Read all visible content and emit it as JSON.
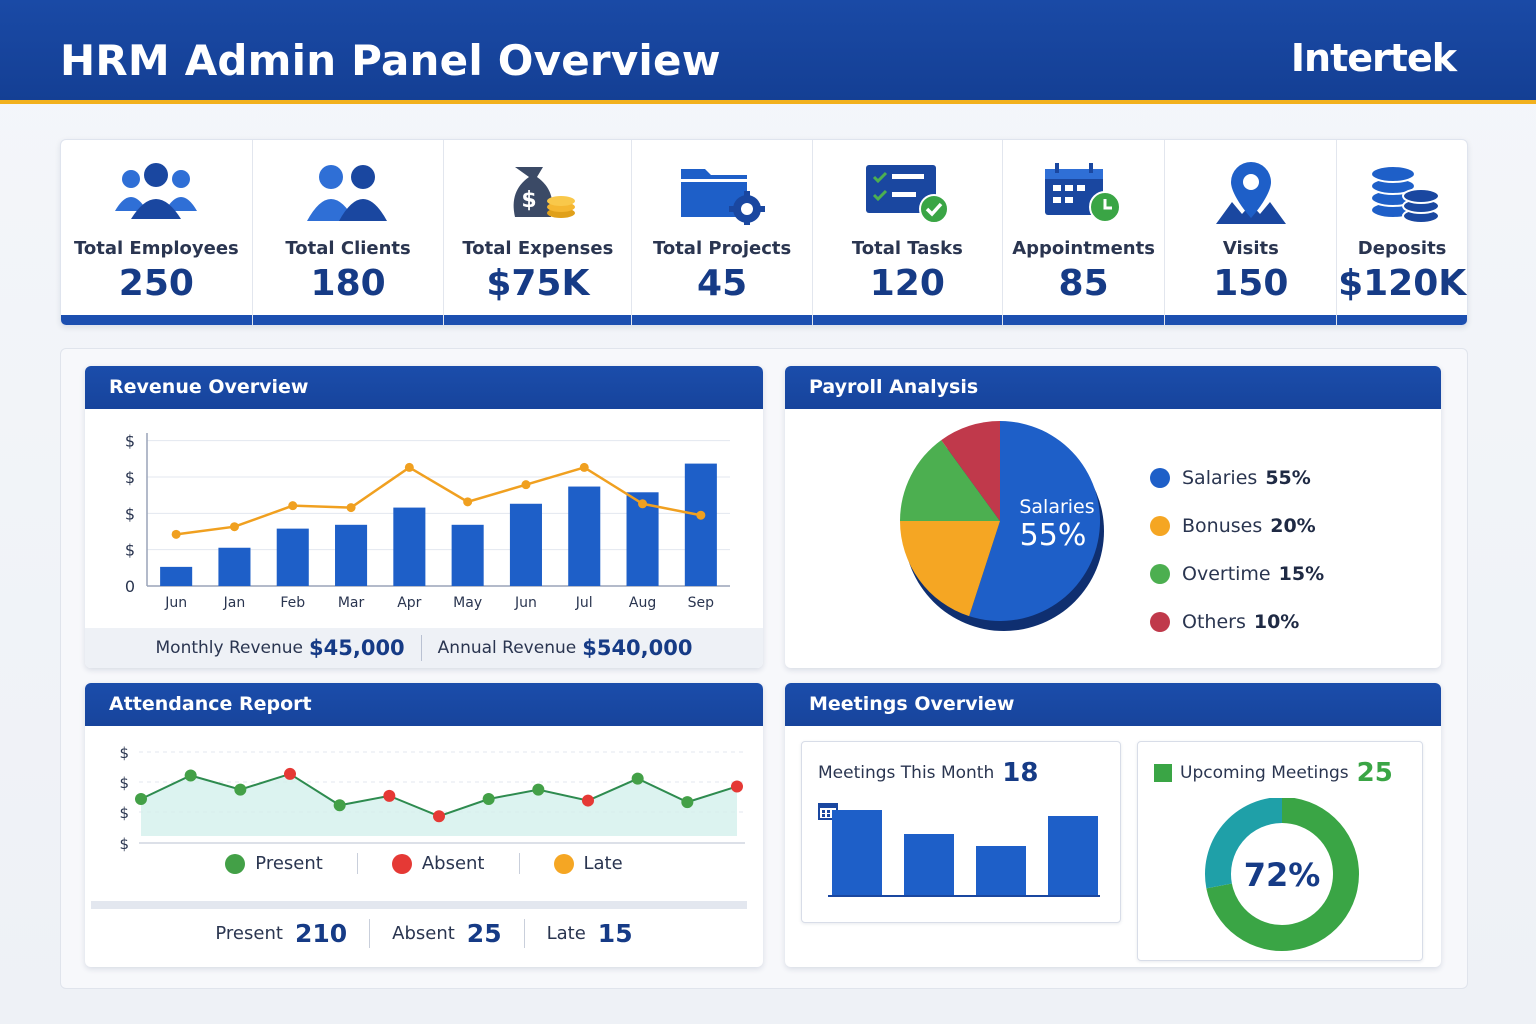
{
  "header": {
    "title": "HRM Admin Panel Overview",
    "brand": "Intertek"
  },
  "kpis": [
    {
      "label": "Total Employees",
      "value": "250",
      "icon": "users-group-icon"
    },
    {
      "label": "Total Clients",
      "value": "180",
      "icon": "clients-icon"
    },
    {
      "label": "Total Expenses",
      "value": "$75K",
      "icon": "money-bag-icon"
    },
    {
      "label": "Total Projects",
      "value": "45",
      "icon": "folder-gear-icon"
    },
    {
      "label": "Total Tasks",
      "value": "120",
      "icon": "task-checklist-icon"
    },
    {
      "label": "Appointments",
      "value": "85",
      "icon": "calendar-clock-icon"
    },
    {
      "label": "Visits",
      "value": "150",
      "icon": "map-pin-icon"
    },
    {
      "label": "Deposits",
      "value": "$120K",
      "icon": "coin-stack-icon"
    }
  ],
  "revenue": {
    "title": "Revenue Overview",
    "monthly_label": "Monthly Revenue",
    "monthly_value": "$45,000",
    "annual_label": "Annual Revenue",
    "annual_value": "$540,000"
  },
  "payroll": {
    "title": "Payroll Analysis",
    "center_label": "Salaries",
    "center_value": "55%",
    "legend": [
      {
        "label": "Salaries",
        "value": "55%",
        "color": "#1e5fc8"
      },
      {
        "label": "Bonuses",
        "value": "20%",
        "color": "#f5a623"
      },
      {
        "label": "Overtime",
        "value": "15%",
        "color": "#4caf50"
      },
      {
        "label": "Others",
        "value": "10%",
        "color": "#c0394b"
      }
    ]
  },
  "attendance": {
    "title": "Attendance Report",
    "legend": [
      {
        "label": "Present",
        "color": "#43a047"
      },
      {
        "label": "Absent",
        "color": "#e53935"
      },
      {
        "label": "Late",
        "color": "#f5a623"
      }
    ],
    "totals": [
      {
        "label": "Present",
        "value": "210"
      },
      {
        "label": "Absent",
        "value": "25"
      },
      {
        "label": "Late",
        "value": "15"
      }
    ]
  },
  "meetings": {
    "title": "Meetings Overview",
    "this_month_label": "Meetings This Month",
    "this_month_value": "18",
    "upcoming_label": "Upcoming Meetings",
    "upcoming_value": "25",
    "donut_label": "72%"
  },
  "chart_data": [
    {
      "type": "bar",
      "title": "Revenue Overview",
      "categories": [
        "Jun",
        "Jan",
        "Feb",
        "Mar",
        "Apr",
        "May",
        "Jun",
        "Jul",
        "Aug",
        "Sep"
      ],
      "y_tick_labels": [
        "0",
        "$",
        "$",
        "$",
        "$"
      ],
      "series": [
        {
          "type": "bar",
          "color": "#1e5fc8",
          "values": [
            1.0,
            2.0,
            3.0,
            3.2,
            4.1,
            3.2,
            4.3,
            5.2,
            4.9,
            6.4
          ]
        },
        {
          "type": "line",
          "color": "#f0a020",
          "values": [
            2.7,
            3.1,
            4.2,
            4.1,
            6.2,
            4.4,
            5.3,
            6.2,
            4.3,
            3.7
          ]
        }
      ],
      "ylim": [
        0,
        8
      ]
    },
    {
      "type": "pie",
      "title": "Payroll Analysis",
      "slices": [
        {
          "label": "Salaries",
          "value": 55,
          "color": "#1e5fc8"
        },
        {
          "label": "Bonuses",
          "value": 20,
          "color": "#f5a623"
        },
        {
          "label": "Overtime",
          "value": 15,
          "color": "#4caf50"
        },
        {
          "label": "Others",
          "value": 10,
          "color": "#c0394b"
        }
      ]
    },
    {
      "type": "line",
      "title": "Attendance Report",
      "y_tick_labels": [
        "$",
        "$",
        "$",
        "$"
      ],
      "points": [
        {
          "value": 3.0,
          "kind": "Present"
        },
        {
          "value": 4.5,
          "kind": "Present"
        },
        {
          "value": 3.6,
          "kind": "Present"
        },
        {
          "value": 4.6,
          "kind": "Absent"
        },
        {
          "value": 2.6,
          "kind": "Present"
        },
        {
          "value": 3.2,
          "kind": "Absent"
        },
        {
          "value": 1.9,
          "kind": "Absent"
        },
        {
          "value": 3.0,
          "kind": "Present"
        },
        {
          "value": 3.6,
          "kind": "Present"
        },
        {
          "value": 2.9,
          "kind": "Absent"
        },
        {
          "value": 4.3,
          "kind": "Present"
        },
        {
          "value": 2.8,
          "kind": "Present"
        },
        {
          "value": 3.8,
          "kind": "Absent"
        }
      ],
      "ylim": [
        0,
        6
      ]
    },
    {
      "type": "bar",
      "title": "Meetings This Month",
      "values": [
        4.3,
        3.1,
        2.5,
        4.0
      ],
      "ylim": [
        0,
        5
      ]
    },
    {
      "type": "pie",
      "title": "Upcoming Meetings",
      "donut": true,
      "slices": [
        {
          "value": 72,
          "color": "#3aa545"
        },
        {
          "value": 28,
          "color": "#1fa0a8"
        }
      ]
    }
  ]
}
